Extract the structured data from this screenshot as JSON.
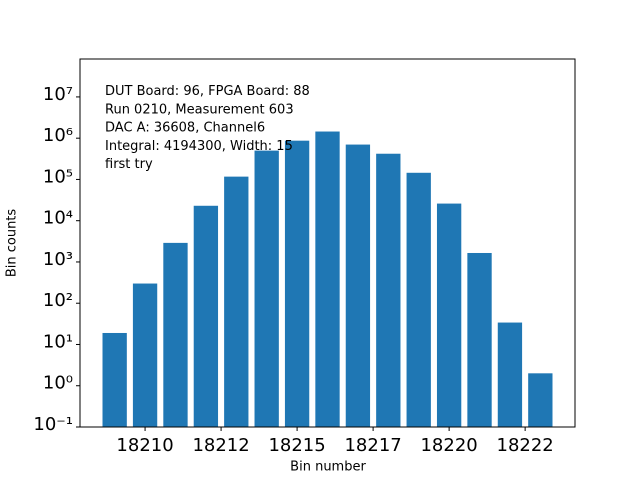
{
  "chart_data": {
    "type": "bar",
    "log_y": true,
    "color": "#1f77b4",
    "bar_width": 0.8,
    "x_label": "Bin number",
    "y_label": "Bin counts",
    "annotation": [
      "DUT Board: 96, FPGA Board: 88",
      "Run 0210, Measurement 603",
      "DAC A: 36608, Channel6",
      "Integral: 4194300, Width: 15",
      "first try"
    ],
    "x": [
      18209,
      18210,
      18211,
      18212,
      18213,
      18214,
      18215,
      18216,
      18217,
      18218,
      18219,
      18220,
      18221,
      18222,
      18223
    ],
    "values": [
      19,
      300,
      2900,
      23000,
      117000,
      500000,
      870000,
      1450000,
      700000,
      420000,
      145000,
      26000,
      1650,
      34,
      2
    ],
    "xlim": [
      18207.86,
      18224.14
    ],
    "xticks": [
      18210,
      {
        "value": 18212.5,
        "label": "18212"
      },
      18215,
      {
        "value": 18217.5,
        "label": "18217"
      },
      18220,
      {
        "value": 18222.5,
        "label": "18222"
      }
    ],
    "ylim": [
      0.1,
      83000000
    ],
    "yticks": [
      {
        "value": 0.1,
        "label": "10⁻¹"
      },
      {
        "value": 1,
        "label": "10⁰"
      },
      {
        "value": 10,
        "label": "10¹"
      },
      {
        "value": 100,
        "label": "10²"
      },
      {
        "value": 1000,
        "label": "10³"
      },
      {
        "value": 10000,
        "label": "10⁴"
      },
      {
        "value": 100000,
        "label": "10⁵"
      },
      {
        "value": 1000000,
        "label": "10⁶"
      },
      {
        "value": 10000000,
        "label": "10⁷"
      }
    ]
  }
}
